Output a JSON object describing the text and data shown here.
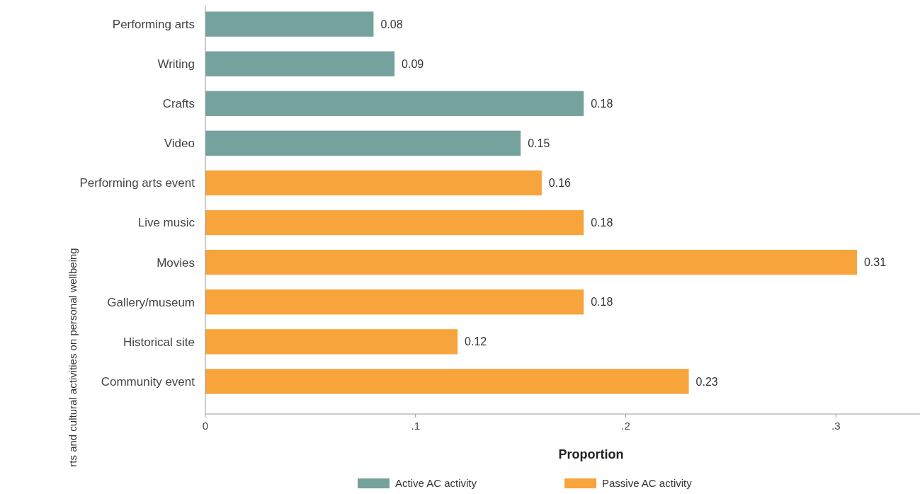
{
  "chart_data": {
    "type": "bar",
    "orientation": "horizontal",
    "xlabel": "Proportion",
    "ylabel": "rts and cultural activities on personal wellbeing",
    "categories": [
      "Performing arts",
      "Writing",
      "Crafts",
      "Video",
      "Performing arts event",
      "Live music",
      "Movies",
      "Gallery/museum",
      "Historical site",
      "Community event"
    ],
    "series": [
      {
        "name": "Active AC activity",
        "color": "#75a29c",
        "values": [
          0.08,
          0.09,
          0.18,
          0.15,
          null,
          null,
          null,
          null,
          null,
          null
        ]
      },
      {
        "name": "Passive AC activity",
        "color": "#f7a43c",
        "values": [
          null,
          null,
          null,
          null,
          0.16,
          0.18,
          0.31,
          0.18,
          0.12,
          0.23
        ]
      }
    ],
    "xlim": [
      0,
      0.34
    ],
    "xticks": [
      0,
      {
        "value": 0.1,
        "label": ".1"
      },
      {
        "value": 0.2,
        "label": ".2"
      },
      {
        "value": 0.3,
        "label": ".3"
      }
    ],
    "data_labels": true,
    "legend": "bottom",
    "grid": false
  }
}
